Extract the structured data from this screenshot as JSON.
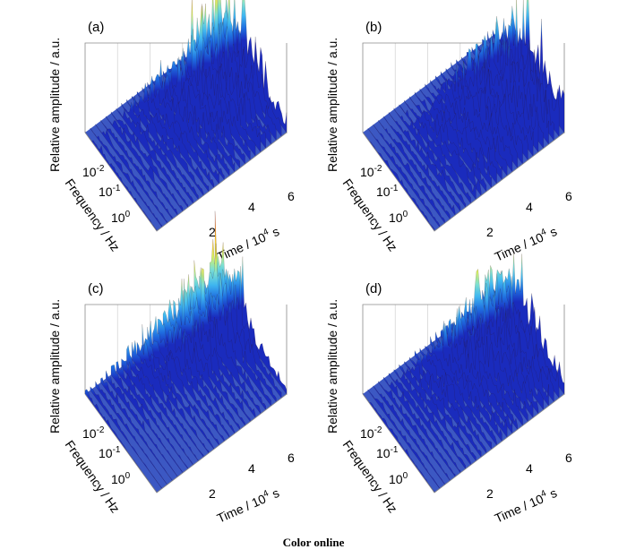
{
  "caption": "Color online",
  "colors": {
    "colormap": [
      "#1a2bbd",
      "#1f6fe0",
      "#3fb6f0",
      "#7fe0d0",
      "#d8f060",
      "#ffd030",
      "#ff8c1a",
      "#f04a10",
      "#b01010"
    ],
    "base": "#1a3bb8",
    "frame": "#8a8a8a"
  },
  "chart_data": [
    {
      "type": "surface-3d",
      "panel": "(a)",
      "xlabel": "Time / 10^4 s",
      "ylabel": "Frequency / Hz",
      "zlabel": "Relative amplitude / a.u.",
      "x_ticks": [
        "2",
        "4",
        "6"
      ],
      "y_ticks": [
        "10^-2",
        "10^-1",
        "10^0"
      ],
      "activity": [
        0.15,
        0.95,
        1.0,
        0.95,
        0.85,
        0.8,
        0.55,
        0.35,
        0.3
      ]
    },
    {
      "type": "surface-3d",
      "panel": "(b)",
      "xlabel": "Time / 10^4 s",
      "ylabel": "Frequency / Hz",
      "zlabel": "Relative amplitude / a.u.",
      "x_ticks": [
        "2",
        "4",
        "6"
      ],
      "y_ticks": [
        "10^-2",
        "10^-1",
        "10^0"
      ],
      "activity": [
        0.1,
        0.35,
        0.85,
        0.9,
        1.0,
        0.95,
        0.9,
        0.8,
        0.55
      ]
    },
    {
      "type": "surface-3d",
      "panel": "(c)",
      "xlabel": "Time / 10^4 s",
      "ylabel": "Frequency / Hz",
      "zlabel": "Relative amplitude / a.u.",
      "x_ticks": [
        "2",
        "4",
        "6"
      ],
      "y_ticks": [
        "10^-2",
        "10^-1",
        "10^0"
      ],
      "activity": [
        0.95,
        0.9,
        0.9,
        0.85,
        0.55,
        0.3,
        0.2,
        0.15,
        0.1
      ]
    },
    {
      "type": "surface-3d",
      "panel": "(d)",
      "xlabel": "Time / 10^4 s",
      "ylabel": "Frequency / Hz",
      "zlabel": "Relative amplitude / a.u.",
      "x_ticks": [
        "2",
        "4",
        "6"
      ],
      "y_ticks": [
        "10^-2",
        "10^-1",
        "10^0"
      ],
      "activity": [
        0.2,
        0.9,
        0.95,
        0.95,
        0.85,
        0.7,
        0.5,
        0.4,
        0.3
      ]
    }
  ]
}
